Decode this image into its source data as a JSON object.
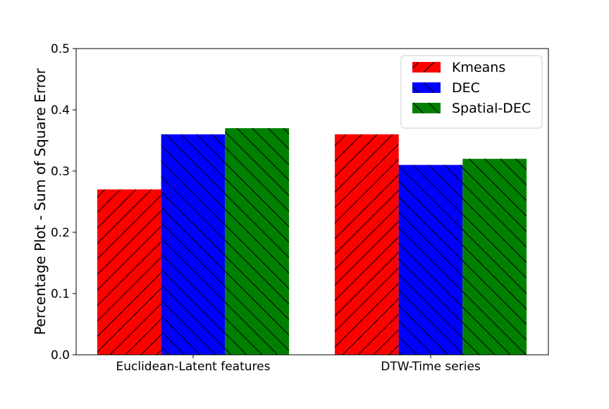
{
  "chart_data": {
    "type": "bar",
    "title": "",
    "xlabel": "",
    "ylabel": "Percentage Plot - Sum of Square Error",
    "categories": [
      "Euclidean-Latent features",
      "DTW-Time series"
    ],
    "series": [
      {
        "name": "Kmeans",
        "values": [
          0.27,
          0.36
        ],
        "color": "#ff0000",
        "hatch": "forward-diagonal"
      },
      {
        "name": "DEC",
        "values": [
          0.36,
          0.31
        ],
        "color": "#0000ff",
        "hatch": "back-diagonal"
      },
      {
        "name": "Spatial-DEC",
        "values": [
          0.37,
          0.32
        ],
        "color": "#008000",
        "hatch": "back-diagonal"
      }
    ],
    "ylim": [
      0,
      0.5
    ],
    "yticks": [
      0.0,
      0.1,
      0.2,
      0.3,
      0.4,
      0.5
    ],
    "ytick_labels": [
      "0.0",
      "0.1",
      "0.2",
      "0.3",
      "0.4",
      "0.5"
    ],
    "grid": false,
    "legend_position": "top-right"
  }
}
